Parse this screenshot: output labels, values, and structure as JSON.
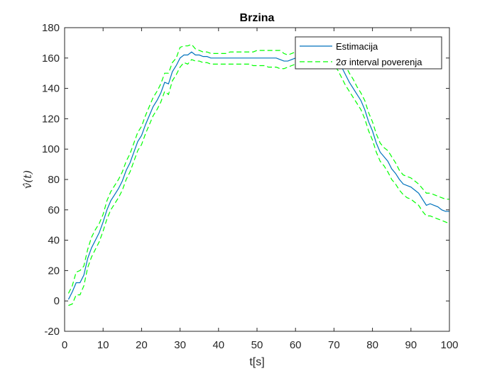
{
  "chart_data": {
    "type": "line",
    "title": "Brzina",
    "xlabel": "t[s]",
    "ylabel": "v̂(t)",
    "xlim": [
      0,
      100
    ],
    "ylim": [
      -20,
      180
    ],
    "xticks": [
      "0",
      "10",
      "20",
      "30",
      "40",
      "50",
      "60",
      "70",
      "80",
      "90",
      "100"
    ],
    "yticks": [
      "-20",
      "0",
      "20",
      "40",
      "60",
      "80",
      "100",
      "120",
      "140",
      "160",
      "180"
    ],
    "grid": false,
    "legend_position": "top-right",
    "x": [
      1,
      2,
      3,
      4,
      5,
      6,
      7,
      8,
      9,
      10,
      11,
      12,
      13,
      14,
      15,
      16,
      17,
      18,
      19,
      20,
      21,
      22,
      23,
      24,
      25,
      26,
      27,
      28,
      29,
      30,
      31,
      32,
      33,
      34,
      35,
      36,
      37,
      38,
      39,
      40,
      41,
      42,
      43,
      44,
      45,
      46,
      47,
      48,
      49,
      50,
      51,
      52,
      53,
      54,
      55,
      56,
      57,
      58,
      59,
      60,
      61,
      62,
      63,
      64,
      65,
      66,
      67,
      68,
      69,
      70,
      71,
      72,
      73,
      74,
      75,
      76,
      77,
      78,
      79,
      80,
      81,
      82,
      83,
      84,
      85,
      86,
      87,
      88,
      89,
      90,
      91,
      92,
      93,
      94,
      95,
      96,
      97,
      98,
      99,
      100
    ],
    "series": [
      {
        "name": "Estimacija",
        "color": "#0072BD",
        "style": "solid",
        "values": [
          1,
          6,
          12,
          12,
          17,
          28,
          35,
          40,
          45,
          52,
          60,
          66,
          70,
          74,
          79,
          86,
          91,
          98,
          105,
          109,
          116,
          122,
          128,
          132,
          137,
          144,
          143,
          151,
          155,
          160,
          162,
          162,
          164,
          162,
          162,
          161,
          161,
          160,
          160,
          160,
          160,
          160,
          160,
          160,
          160,
          160,
          160,
          160,
          160,
          160,
          160,
          160,
          160,
          160,
          160,
          159,
          158,
          158,
          159,
          160,
          160,
          160,
          160,
          160,
          160,
          160,
          160,
          160,
          161,
          160,
          158,
          154,
          149,
          144,
          140,
          136,
          132,
          126,
          118,
          112,
          104,
          98,
          95,
          92,
          87,
          84,
          80,
          77,
          76,
          75,
          73,
          71,
          67,
          63,
          64,
          63,
          62,
          60,
          59,
          59
        ]
      },
      {
        "name": "2σ interval poverenja",
        "color": "#00FF00",
        "style": "dashed",
        "values": [
          5,
          10,
          19,
          20,
          23,
          34,
          42,
          47,
          51,
          57,
          66,
          72,
          76,
          80,
          85,
          92,
          97,
          104,
          111,
          115,
          122,
          128,
          134,
          138,
          143,
          150,
          150,
          157,
          160,
          167,
          168,
          168,
          169,
          166,
          165,
          164,
          164,
          163,
          163,
          163,
          163,
          163,
          164,
          164,
          164,
          164,
          164,
          164,
          164,
          165,
          165,
          165,
          165,
          165,
          165,
          165,
          163,
          162,
          163,
          164,
          164,
          164,
          164,
          164,
          164,
          164,
          164,
          165,
          166,
          165,
          163,
          160,
          155,
          150,
          146,
          141,
          137,
          132,
          124,
          118,
          110,
          104,
          101,
          99,
          95,
          91,
          86,
          83,
          82,
          81,
          79,
          77,
          74,
          71,
          71,
          70,
          69,
          68,
          67,
          67
        ]
      },
      {
        "name": "2σ interval poverenja (lower)",
        "color": "#00FF00",
        "style": "dashed",
        "values": [
          -3,
          -2,
          4,
          4,
          10,
          22,
          29,
          34,
          39,
          46,
          54,
          60,
          64,
          68,
          73,
          80,
          85,
          92,
          99,
          103,
          110,
          116,
          122,
          126,
          131,
          138,
          136,
          145,
          149,
          154,
          157,
          156,
          159,
          158,
          158,
          157,
          157,
          156,
          156,
          156,
          156,
          156,
          156,
          156,
          156,
          156,
          156,
          156,
          155,
          155,
          155,
          155,
          154,
          154,
          154,
          153,
          153,
          154,
          155,
          156,
          156,
          156,
          156,
          156,
          156,
          156,
          156,
          156,
          156,
          155,
          152,
          147,
          142,
          138,
          134,
          130,
          126,
          120,
          112,
          106,
          98,
          92,
          89,
          85,
          80,
          77,
          73,
          70,
          68,
          67,
          65,
          63,
          59,
          56,
          56,
          55,
          54,
          53,
          52,
          51
        ]
      }
    ],
    "legend": [
      {
        "label": "Estimacija",
        "color": "#0072BD",
        "style": "solid"
      },
      {
        "label": "2σ interval poverenja",
        "color": "#00FF00",
        "style": "dashed"
      }
    ]
  }
}
